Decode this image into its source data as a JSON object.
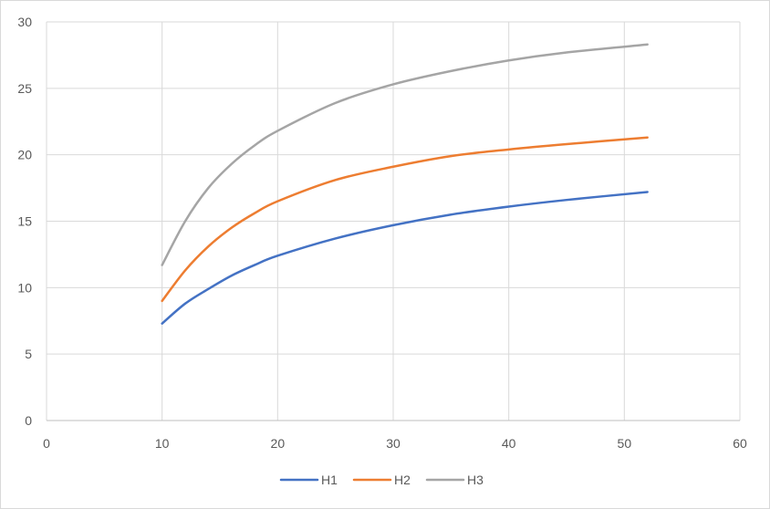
{
  "chart_data": {
    "type": "line",
    "title": "",
    "xlabel": "",
    "ylabel": "",
    "xlim": [
      0,
      60
    ],
    "ylim": [
      0,
      30
    ],
    "xticks": [
      0,
      10,
      20,
      30,
      40,
      50,
      60
    ],
    "yticks": [
      0,
      5,
      10,
      15,
      20,
      25,
      30
    ],
    "x_tick_labels": [
      "0",
      "10",
      "20",
      "30",
      "40",
      "50",
      "60"
    ],
    "y_tick_labels": [
      "0",
      "5",
      "10",
      "15",
      "20",
      "25",
      "30"
    ],
    "grid": true,
    "legend_position": "bottom",
    "x": [
      10,
      12,
      14,
      16,
      18,
      20,
      25,
      30,
      35,
      40,
      45,
      52
    ],
    "series": [
      {
        "name": "H1",
        "color": "#4472C4",
        "values": [
          7.3,
          8.8,
          9.9,
          10.9,
          11.7,
          12.4,
          13.7,
          14.7,
          15.5,
          16.1,
          16.6,
          17.2
        ]
      },
      {
        "name": "H2",
        "color": "#ED7D31",
        "values": [
          9.0,
          11.3,
          13.1,
          14.5,
          15.6,
          16.5,
          18.1,
          19.1,
          19.9,
          20.4,
          20.8,
          21.3
        ]
      },
      {
        "name": "H3",
        "color": "#A5A5A5",
        "values": [
          11.7,
          15.0,
          17.5,
          19.3,
          20.7,
          21.8,
          23.9,
          25.3,
          26.3,
          27.1,
          27.7,
          28.3
        ]
      }
    ]
  }
}
